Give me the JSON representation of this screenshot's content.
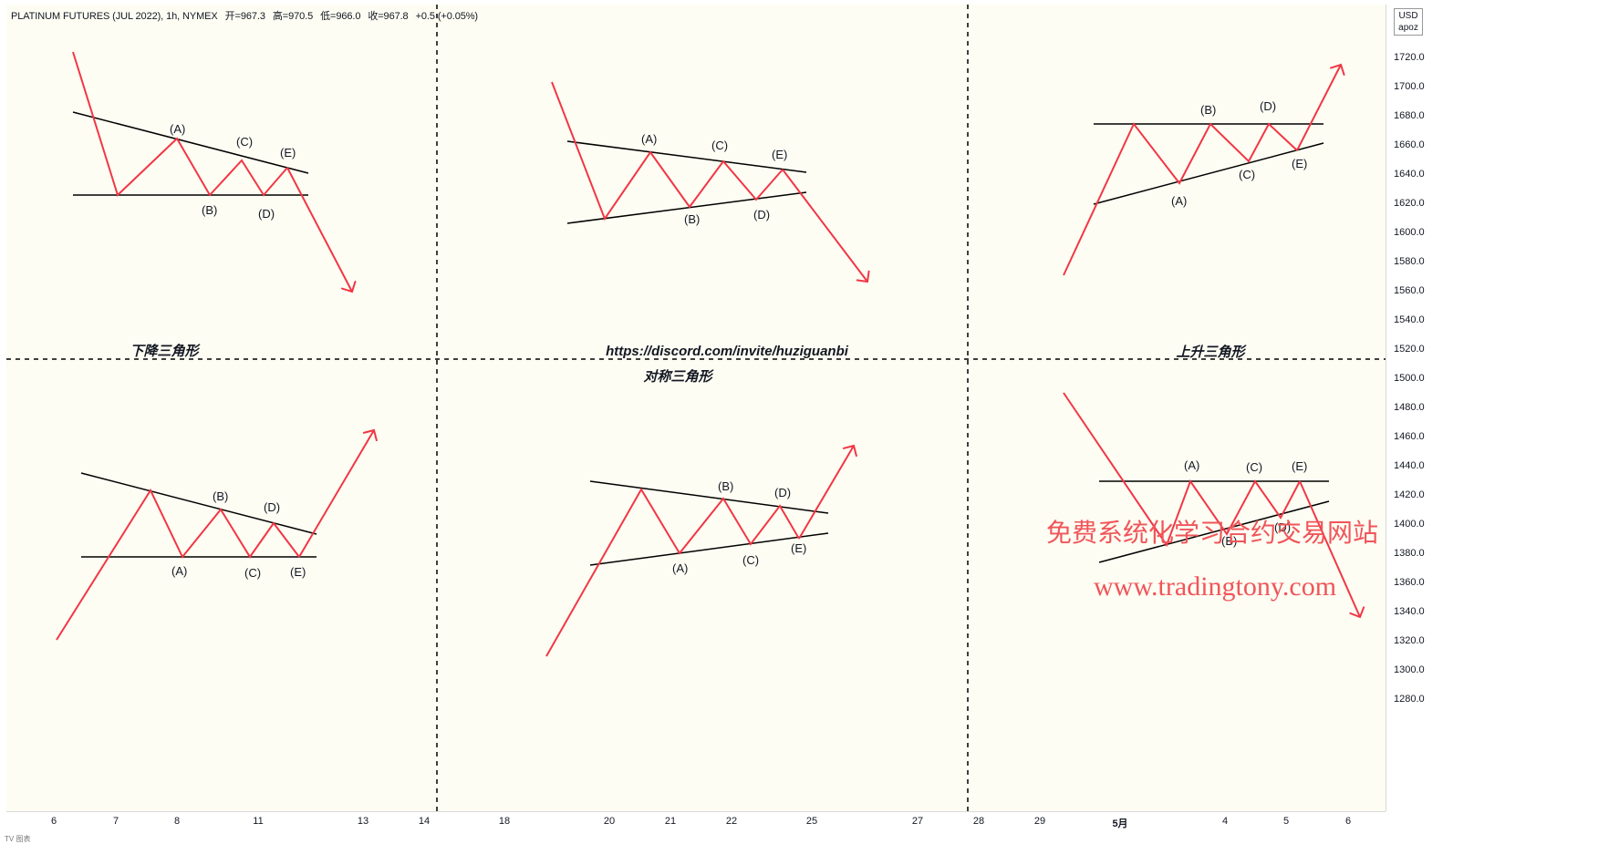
{
  "header": {
    "symbol": "PLATINUM FUTURES (JUL 2022), 1h, NYMEX",
    "open": "开=967.3",
    "high": "高=970.5",
    "low": "低=966.0",
    "close": "收=967.8",
    "change": "+0.5 (+0.05%)"
  },
  "price_axis": {
    "currency": "USD",
    "unit": "apoz",
    "ticks": [
      "1720.0",
      "1700.0",
      "1680.0",
      "1660.0",
      "1640.0",
      "1620.0",
      "1600.0",
      "1580.0",
      "1560.0",
      "1540.0",
      "1520.0",
      "1500.0",
      "1480.0",
      "1460.0",
      "1440.0",
      "1420.0",
      "1400.0",
      "1380.0",
      "1360.0",
      "1340.0",
      "1320.0",
      "1300.0",
      "1280.0"
    ]
  },
  "time_axis": {
    "ticks": [
      "6",
      "7",
      "8",
      "11",
      "13",
      "14",
      "18",
      "20",
      "21",
      "22",
      "25",
      "27",
      "28",
      "29",
      "5月",
      "4",
      "5",
      "6"
    ]
  },
  "titles": {
    "descending": "下降三角形",
    "link": "https://discord.com/invite/huziguanbi",
    "symmetrical": "对称三角形",
    "ascending": "上升三角形"
  },
  "wave_labels": [
    "(A)",
    "(B)",
    "(C)",
    "(D)",
    "(E)"
  ],
  "watermark": {
    "line1": "免费系统化学习合约交易网站",
    "line2": "www.tradingtony.com"
  },
  "footer": "TV 图表",
  "colors": {
    "wave": "#f23645",
    "trendline": "#000000",
    "divider": "#000000",
    "watermark": "#f0555a",
    "background": "#fdfdf3"
  }
}
